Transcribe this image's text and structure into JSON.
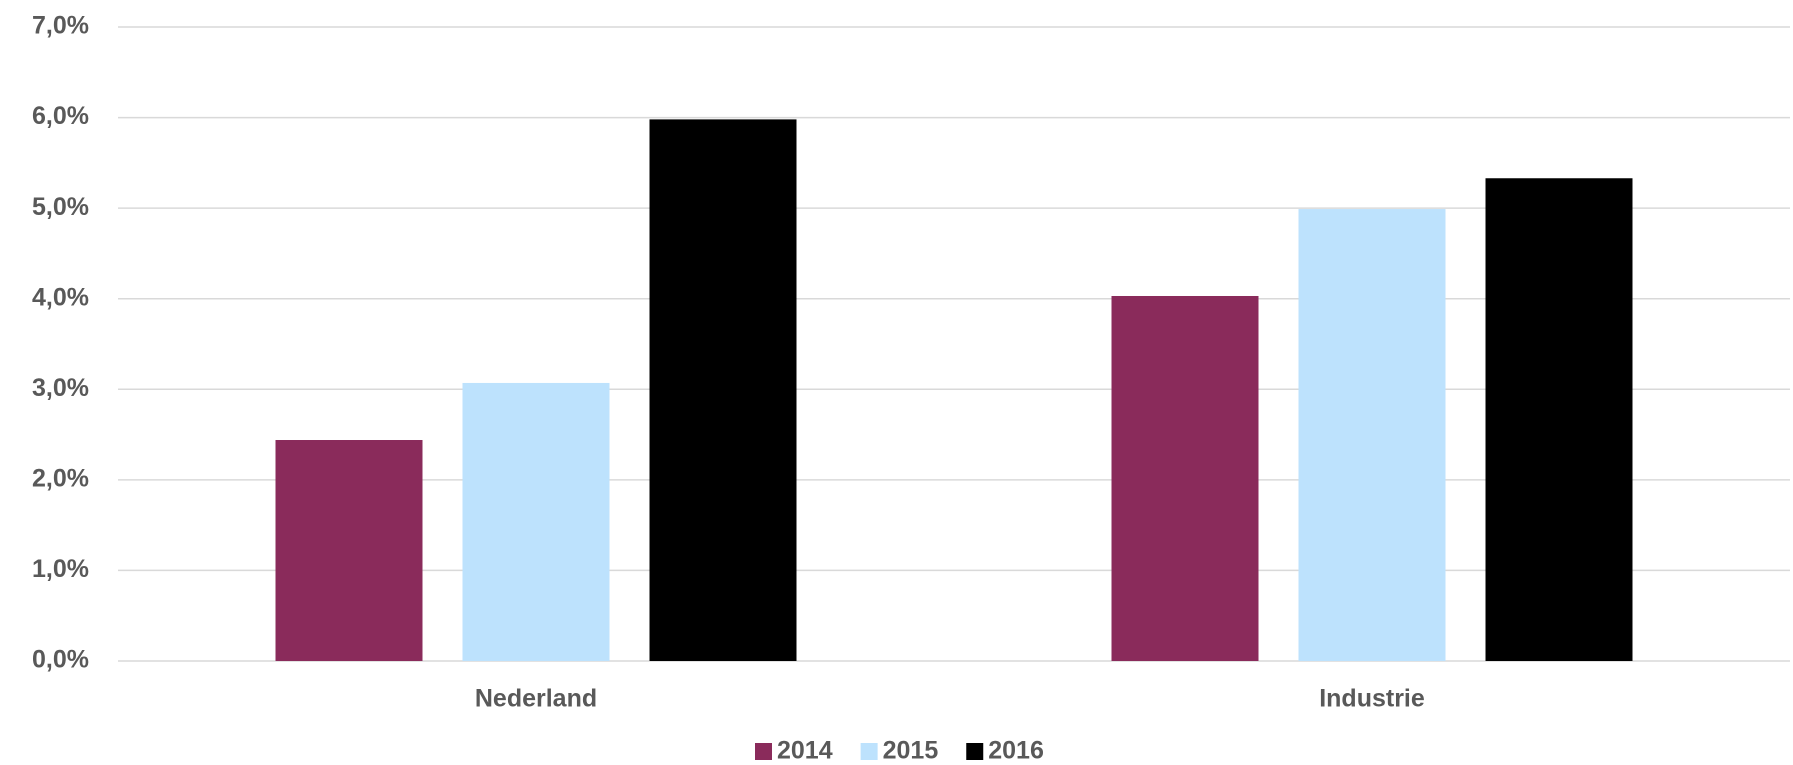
{
  "chart_data": {
    "type": "bar",
    "categories": [
      "Nederland",
      "Industrie"
    ],
    "series": [
      {
        "name": "2014",
        "color": "#8a2b5b",
        "values": [
          2.44,
          4.03
        ]
      },
      {
        "name": "2015",
        "color": "#bde2fd",
        "values": [
          3.07,
          4.99
        ]
      },
      {
        "name": "2016",
        "color": "#000000",
        "values": [
          5.98,
          5.33
        ]
      }
    ],
    "ylim": [
      0,
      7
    ],
    "yticks": [
      {
        "value": 0,
        "label": "0,0%"
      },
      {
        "value": 1,
        "label": "1,0%"
      },
      {
        "value": 2,
        "label": "2,0%"
      },
      {
        "value": 3,
        "label": "3,0%"
      },
      {
        "value": 4,
        "label": "4,0%"
      },
      {
        "value": 5,
        "label": "5,0%"
      },
      {
        "value": 6,
        "label": "6,0%"
      },
      {
        "value": 7,
        "label": "7,0%"
      }
    ],
    "grid": true,
    "legend": "bottom"
  }
}
